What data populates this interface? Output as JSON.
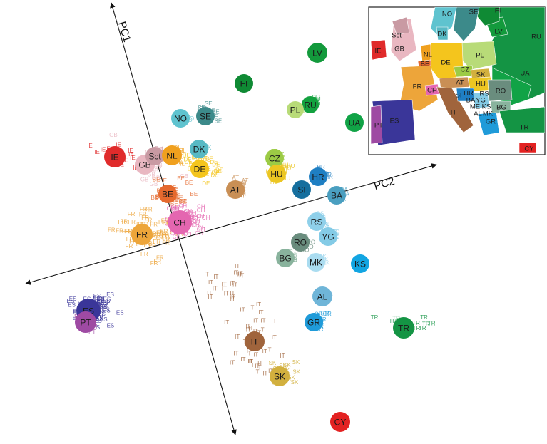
{
  "chart_data": {
    "type": "scatter",
    "title": "",
    "axes": [
      {
        "name": "PC1"
      },
      {
        "name": "PC2"
      }
    ],
    "centroids": [
      {
        "code": "IE",
        "color": "#e02b2b"
      },
      {
        "code": "GB",
        "color": "#e9b7c1"
      },
      {
        "code": "Sct",
        "color": "#c99aa3"
      },
      {
        "code": "NL",
        "color": "#f0a01e"
      },
      {
        "code": "NO",
        "color": "#5fc3cf"
      },
      {
        "code": "SE",
        "color": "#3c8a8a"
      },
      {
        "code": "FI",
        "color": "#0f8a34"
      },
      {
        "code": "LV",
        "color": "#139a3c"
      },
      {
        "code": "RU",
        "color": "#13a13f"
      },
      {
        "code": "PL",
        "color": "#b8db78"
      },
      {
        "code": "UA",
        "color": "#11a346"
      },
      {
        "code": "DK",
        "color": "#58b9c4"
      },
      {
        "code": "DE",
        "color": "#f4c51d"
      },
      {
        "code": "CZ",
        "color": "#9ccb45"
      },
      {
        "code": "HU",
        "color": "#ecc622"
      },
      {
        "code": "HR",
        "color": "#1f7fc3"
      },
      {
        "code": "AT",
        "color": "#c98f55"
      },
      {
        "code": "SI",
        "color": "#166f9e"
      },
      {
        "code": "BA",
        "color": "#4a9fc0"
      },
      {
        "code": "BE",
        "color": "#e5692e"
      },
      {
        "code": "FR",
        "color": "#eda53a"
      },
      {
        "code": "CH",
        "color": "#e466b0"
      },
      {
        "code": "RS",
        "color": "#8fd0ea"
      },
      {
        "code": "YG",
        "color": "#84cbe6"
      },
      {
        "code": "RO",
        "color": "#6a8d7e"
      },
      {
        "code": "BG",
        "color": "#89b39d"
      },
      {
        "code": "MK",
        "color": "#aadcf0"
      },
      {
        "code": "KS",
        "color": "#12a5e2"
      },
      {
        "code": "AL",
        "color": "#6fb5d8"
      },
      {
        "code": "GR",
        "color": "#1f9bd9"
      },
      {
        "code": "TR",
        "color": "#149444"
      },
      {
        "code": "IT",
        "color": "#a0643c"
      },
      {
        "code": "SK",
        "color": "#d2b03e"
      },
      {
        "code": "CY",
        "color": "#e32222"
      },
      {
        "code": "ES",
        "color": "#3a3699"
      },
      {
        "code": "PT",
        "color": "#9e4aa3"
      }
    ],
    "inset_map_labels": [
      "NO",
      "SE",
      "FI",
      "LV",
      "RU",
      "DK",
      "Sct",
      "IE",
      "GB",
      "NL",
      "BE",
      "DE",
      "PL",
      "CZ",
      "SK",
      "HU",
      "UA",
      "FR",
      "CH",
      "AT",
      "SI",
      "HR",
      "RS",
      "RO",
      "BA",
      "YG",
      "ME",
      "KS",
      "BG",
      "AL",
      "MK",
      "IT",
      "GR",
      "ES",
      "PT",
      "TR",
      "CY"
    ],
    "legend": "inset map top-right",
    "grid": false
  }
}
